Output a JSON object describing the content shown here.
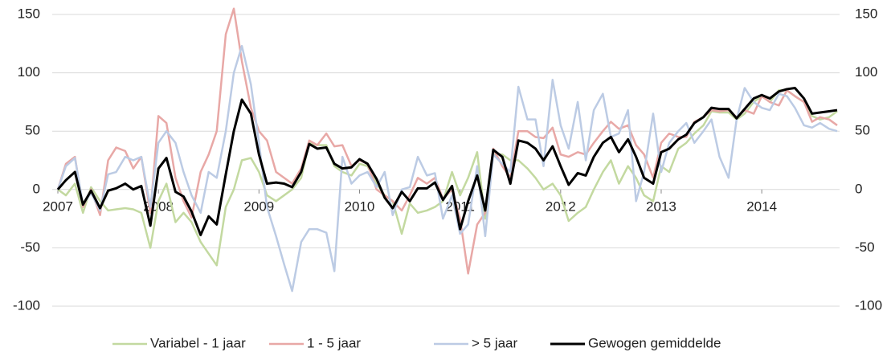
{
  "chart_data": {
    "type": "line",
    "x": [
      2007,
      2007.08,
      2007.17,
      2007.25,
      2007.33,
      2007.42,
      2007.5,
      2007.58,
      2007.67,
      2007.75,
      2007.83,
      2007.92,
      2008,
      2008.08,
      2008.17,
      2008.25,
      2008.33,
      2008.42,
      2008.5,
      2008.58,
      2008.67,
      2008.75,
      2008.83,
      2008.92,
      2009,
      2009.08,
      2009.17,
      2009.25,
      2009.33,
      2009.42,
      2009.5,
      2009.58,
      2009.67,
      2009.75,
      2009.83,
      2009.92,
      2010,
      2010.08,
      2010.17,
      2010.25,
      2010.33,
      2010.42,
      2010.5,
      2010.58,
      2010.67,
      2010.75,
      2010.83,
      2010.92,
      2011,
      2011.08,
      2011.17,
      2011.25,
      2011.33,
      2011.42,
      2011.5,
      2011.58,
      2011.67,
      2011.75,
      2011.83,
      2011.92,
      2012,
      2012.08,
      2012.17,
      2012.25,
      2012.33,
      2012.42,
      2012.5,
      2012.58,
      2012.67,
      2012.75,
      2012.83,
      2012.92,
      2013,
      2013.08,
      2013.17,
      2013.25,
      2013.33,
      2013.42,
      2013.5,
      2013.58,
      2013.67,
      2013.75,
      2013.83,
      2013.92,
      2014,
      2014.08,
      2014.17,
      2014.25,
      2014.33,
      2014.42,
      2014.5,
      2014.58,
      2014.67,
      2014.75
    ],
    "xlim": [
      2007,
      2014.75
    ],
    "xticks": [
      2007,
      2008,
      2009,
      2010,
      2011,
      2012,
      2013,
      2014
    ],
    "ylim": [
      -100,
      150
    ],
    "yticks": [
      -100,
      -50,
      0,
      50,
      100,
      150
    ],
    "grid": true,
    "legend": "bottom",
    "series": [
      {
        "name": "Variabel - 1 jaar",
        "color": "#c3d9a0",
        "values": [
          0,
          -5,
          5,
          -20,
          2,
          -10,
          -18,
          -17,
          -16,
          -17,
          -20,
          -50,
          -10,
          5,
          -28,
          -20,
          -28,
          -45,
          -55,
          -65,
          -15,
          0,
          25,
          27,
          15,
          -5,
          -10,
          -5,
          0,
          10,
          40,
          38,
          38,
          20,
          15,
          12,
          22,
          20,
          5,
          -5,
          -10,
          -38,
          -12,
          -20,
          -18,
          -15,
          -10,
          15,
          -5,
          10,
          32,
          -25,
          30,
          30,
          25,
          25,
          18,
          10,
          0,
          5,
          -5,
          -27,
          -20,
          -15,
          0,
          15,
          25,
          5,
          20,
          10,
          -5,
          -10,
          20,
          15,
          35,
          40,
          48,
          55,
          67,
          66,
          66,
          60,
          65,
          75,
          80,
          75,
          85,
          85,
          80,
          75,
          63,
          60,
          62,
          67
        ]
      },
      {
        "name": "1 - 5 jaar",
        "color": "#e8a8a6",
        "values": [
          0,
          22,
          28,
          -15,
          0,
          -22,
          25,
          36,
          33,
          18,
          28,
          -20,
          63,
          57,
          10,
          -10,
          -24,
          15,
          30,
          50,
          133,
          155,
          110,
          70,
          50,
          42,
          15,
          10,
          5,
          18,
          42,
          38,
          48,
          37,
          38,
          20,
          25,
          22,
          0,
          -5,
          -10,
          -18,
          -5,
          10,
          5,
          10,
          -8,
          0,
          -25,
          -72,
          -30,
          -20,
          35,
          20,
          10,
          50,
          50,
          45,
          44,
          53,
          30,
          28,
          32,
          30,
          40,
          50,
          58,
          52,
          55,
          38,
          30,
          10,
          40,
          48,
          45,
          45,
          58,
          62,
          68,
          67,
          68,
          62,
          68,
          65,
          80,
          75,
          72,
          85,
          80,
          75,
          58,
          62,
          60,
          55
        ]
      },
      {
        "name": "> 5 jaar",
        "color": "#bccbe4",
        "values": [
          0,
          20,
          27,
          -13,
          -3,
          -18,
          13,
          15,
          28,
          25,
          28,
          -15,
          40,
          50,
          40,
          15,
          -5,
          -20,
          15,
          10,
          50,
          100,
          123,
          90,
          40,
          -15,
          -40,
          -64,
          -87,
          -45,
          -34,
          -34,
          -37,
          -70,
          28,
          5,
          12,
          15,
          2,
          15,
          -22,
          0,
          2,
          28,
          12,
          14,
          -25,
          -5,
          -38,
          -30,
          20,
          -40,
          30,
          22,
          15,
          88,
          60,
          60,
          20,
          94,
          55,
          35,
          75,
          25,
          68,
          82,
          45,
          48,
          68,
          -10,
          15,
          65,
          15,
          40,
          50,
          57,
          40,
          50,
          60,
          28,
          10,
          60,
          87,
          75,
          70,
          68,
          82,
          80,
          70,
          55,
          53,
          57,
          52,
          50
        ]
      },
      {
        "name": "Gewogen gemiddelde",
        "color": "#000000",
        "values": [
          0,
          8,
          15,
          -13,
          -1,
          -16,
          -1,
          1,
          5,
          0,
          3,
          -31,
          18,
          27,
          -2,
          -6,
          -19,
          -39,
          -23,
          -30,
          13,
          50,
          77,
          65,
          30,
          5,
          6,
          5,
          2,
          15,
          39,
          35,
          36,
          22,
          18,
          19,
          26,
          22,
          9,
          -7,
          -16,
          -2,
          -10,
          1,
          1,
          6,
          -9,
          3,
          -34,
          -10,
          12,
          -18,
          34,
          28,
          5,
          42,
          40,
          35,
          25,
          37,
          20,
          4,
          14,
          12,
          28,
          40,
          45,
          32,
          43,
          28,
          10,
          5,
          32,
          35,
          43,
          47,
          57,
          62,
          70,
          69,
          69,
          61,
          69,
          78,
          81,
          78,
          84,
          86,
          87,
          78,
          65,
          66,
          67,
          68
        ]
      }
    ]
  }
}
